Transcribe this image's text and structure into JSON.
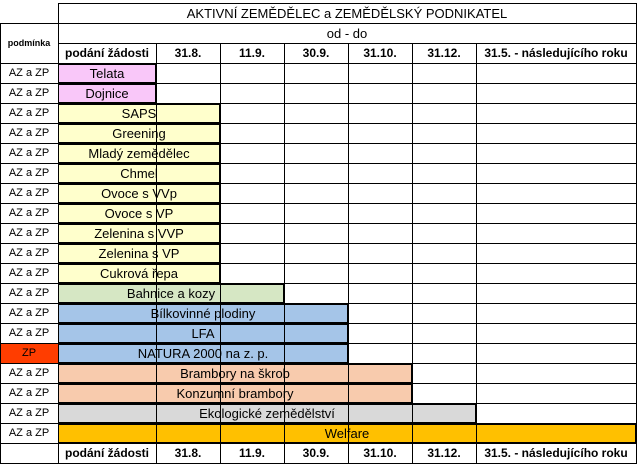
{
  "title": "AKTIVNÍ ZEMĚDĚLEC a ZEMĚDĚLSKÝ PODNIKATEL",
  "condition_header": "podmínka",
  "range_header": "od - do",
  "columns": [
    "podání žádosti",
    "31.8.",
    "11.9.",
    "30.9.",
    "31.10.",
    "31.12.",
    "31.5. - následujícího roku"
  ],
  "rows": [
    {
      "condition": "AZ a ZP",
      "label": "Telata",
      "end_col": 0,
      "color": "#f9c7f9"
    },
    {
      "condition": "AZ a ZP",
      "label": "Dojnice",
      "end_col": 0,
      "color": "#f9c7f9"
    },
    {
      "condition": "AZ a ZP",
      "label": "SAPS",
      "end_col": 1,
      "color": "#ffffcc"
    },
    {
      "condition": "AZ a ZP",
      "label": "Greening",
      "end_col": 1,
      "color": "#ffffcc"
    },
    {
      "condition": "AZ a ZP",
      "label": "Mladý zemědělec",
      "end_col": 1,
      "color": "#ffffcc"
    },
    {
      "condition": "AZ a ZP",
      "label": "Chmel",
      "end_col": 1,
      "color": "#ffffcc"
    },
    {
      "condition": "AZ a ZP",
      "label": "Ovoce s VVp",
      "end_col": 1,
      "color": "#ffffcc"
    },
    {
      "condition": "AZ a ZP",
      "label": "Ovoce s VP",
      "end_col": 1,
      "color": "#ffffcc"
    },
    {
      "condition": "AZ a ZP",
      "label": "Zelenina s VVP",
      "end_col": 1,
      "color": "#ffffcc"
    },
    {
      "condition": "AZ a ZP",
      "label": "Zelenina s VP",
      "end_col": 1,
      "color": "#ffffcc"
    },
    {
      "condition": "AZ a ZP",
      "label": "Cukrová řepa",
      "end_col": 1,
      "color": "#ffffcc"
    },
    {
      "condition": "AZ a ZP",
      "label": "Bahnice a kozy",
      "end_col": 2,
      "color": "#d6e7c4"
    },
    {
      "condition": "AZ a ZP",
      "label": "Bílkovinné plodiny",
      "end_col": 3,
      "color": "#a5c5e8"
    },
    {
      "condition": "AZ a ZP",
      "label": "LFA",
      "end_col": 3,
      "color": "#a5c5e8"
    },
    {
      "condition": "ZP",
      "label": "NATURA 2000 na z. p.",
      "end_col": 3,
      "color": "#a5c5e8",
      "condition_color": "#ff3d00"
    },
    {
      "condition": "AZ a ZP",
      "label": "Brambory na škrob",
      "end_col": 4,
      "color": "#f8cbad"
    },
    {
      "condition": "AZ a ZP",
      "label": "Konzumní brambory",
      "end_col": 4,
      "color": "#f8cbad"
    },
    {
      "condition": "AZ a ZP",
      "label": "Ekologické zemědělství",
      "end_col": 5,
      "color": "#d9d9d9"
    },
    {
      "condition": "AZ a ZP",
      "label": "Welfare",
      "end_col": 6,
      "color": "#ffc000"
    }
  ]
}
